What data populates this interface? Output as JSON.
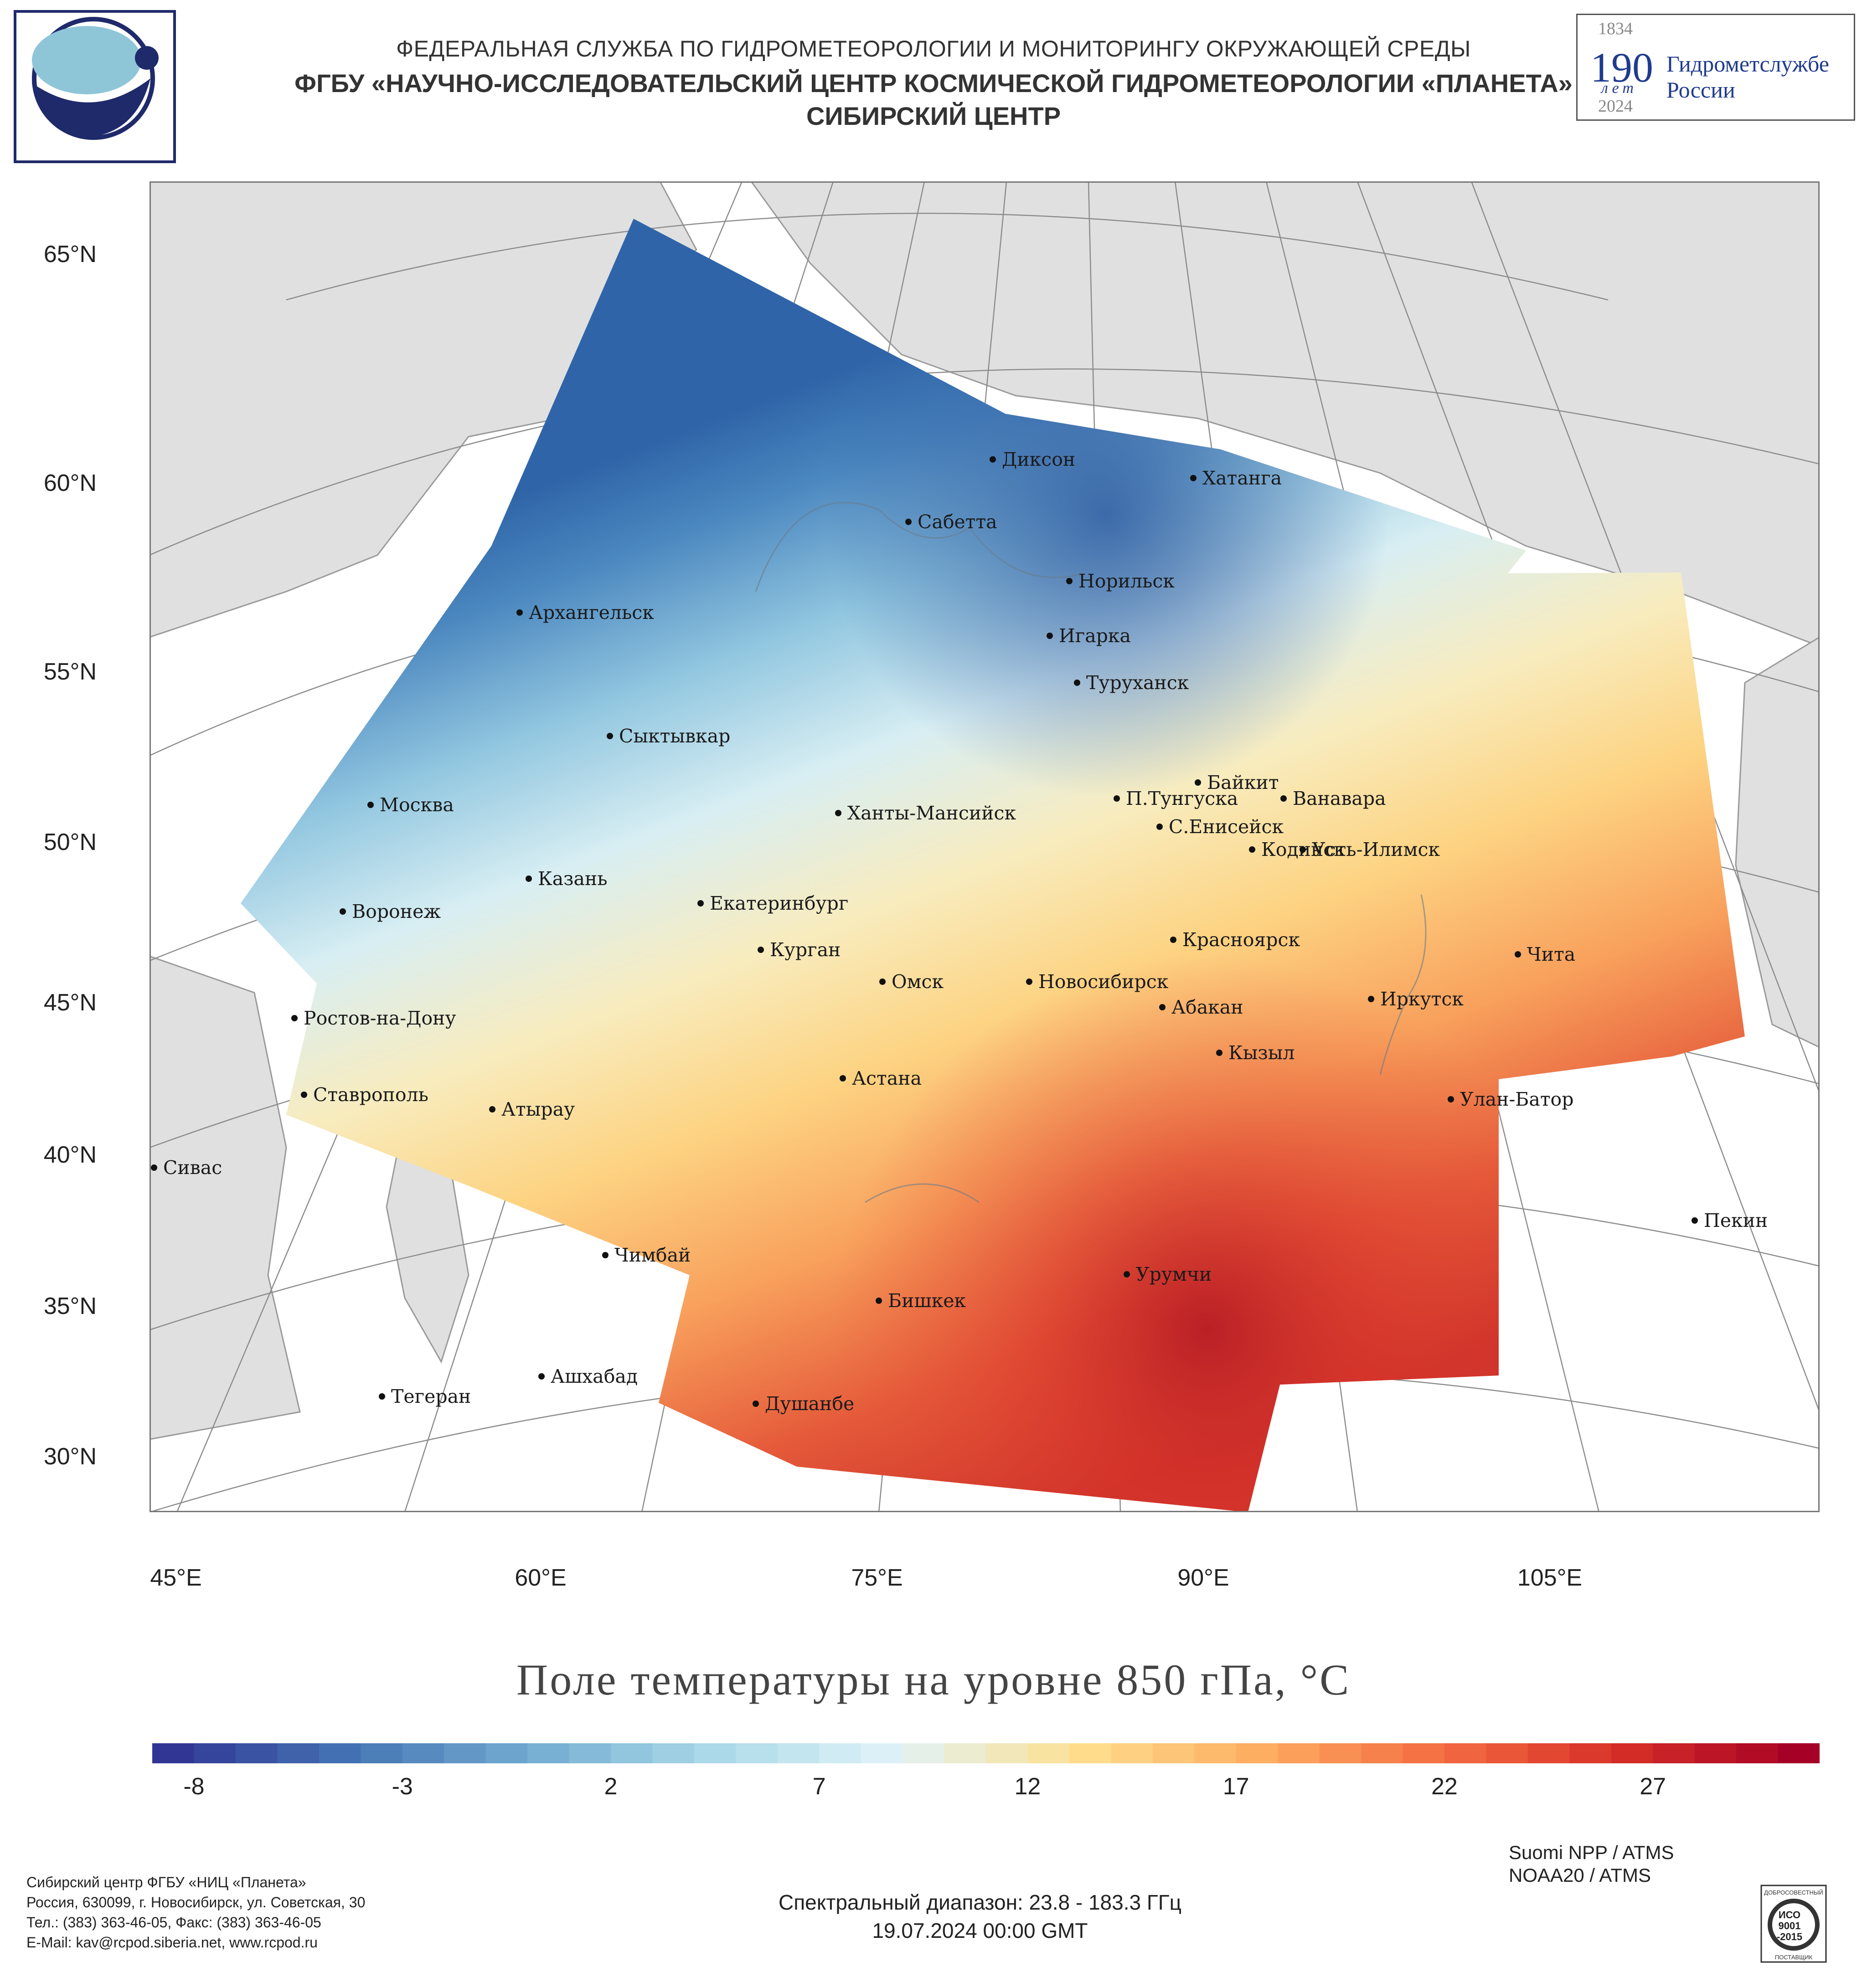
{
  "header": {
    "agency": "ФЕДЕРАЛЬНАЯ СЛУЖБА ПО ГИДРОМЕТЕОРОЛОГИИ И МОНИТОРИНГУ ОКРУЖАЮЩЕЙ СРЕДЫ",
    "institute": "ФГБУ «НАУЧНО-ИССЛЕДОВАТЕЛЬСКИЙ ЦЕНТР КОСМИЧЕСКОЙ ГИДРОМЕТЕОРОЛОГИИ «ПЛАНЕТА»",
    "center": "СИБИРСКИЙ ЦЕНТР"
  },
  "badge": {
    "year_start": "1834",
    "number": "190",
    "years_word": "лет",
    "year_end": "2024",
    "line1": "Гидрометслужбе",
    "line2": "России"
  },
  "map": {
    "lat_labels": [
      "65°N",
      "60°N",
      "55°N",
      "50°N",
      "45°N",
      "40°N",
      "35°N",
      "30°N"
    ],
    "lon_labels": [
      "45°E",
      "60°E",
      "75°E",
      "90°E",
      "105°E"
    ],
    "cities": [
      "Диксон",
      "Хатанга",
      "Сабетта",
      "Норильск",
      "Архангельск",
      "Игарка",
      "Туруханск",
      "Сыктывкар",
      "Байкит",
      "Москва",
      "П.Тунгуска",
      "Ванавара",
      "Ханты-Мансийск",
      "С.Енисейск",
      "Кодинск",
      "Усть-Илимск",
      "Казань",
      "Екатеринбург",
      "Воронеж",
      "Красноярск",
      "Курган",
      "Чита",
      "Омск",
      "Новосибирск",
      "Ростов-на-Дону",
      "Иркутск",
      "Абакан",
      "Кызыл",
      "Ставрополь",
      "Астана",
      "Улан-Батор",
      "Атырау",
      "Сивас",
      "Пекин",
      "Чимбай",
      "Урумчи",
      "Бишкек",
      "Ашхабад",
      "Тегеран",
      "Душанбе"
    ]
  },
  "legend": {
    "title": "Поле температуры на уровне 850 гПа, °C",
    "ticks": [
      "-8",
      "-3",
      "2",
      "7",
      "12",
      "17",
      "22",
      "27"
    ],
    "range_min": -9,
    "range_max": 31,
    "colors": [
      "#313695",
      "#4575b4",
      "#74add1",
      "#abd9e9",
      "#e0f3f8",
      "#fee090",
      "#fdae61",
      "#f46d43",
      "#d73027",
      "#a50026"
    ]
  },
  "footer": {
    "satellite1": "Suomi NPP / ATMS",
    "satellite2": "NOAA20 / ATMS",
    "spectral": "Спектральный диапазон: 23.8 - 183.3 ГГц",
    "datetime": "19.07.2024 00:00 GMT",
    "contact1": "Сибирский центр ФГБУ «НИЦ «Планета»",
    "contact2": "Россия, 630099, г. Новосибирск, ул. Советская, 30",
    "contact3": "Тел.: (383) 363-46-05, Факс: (383) 363-46-05",
    "contact4": "E-Mail: kav@rcpod.siberia.net, www.rcpod.ru",
    "iso_top": "ДОБРОСОВЕСТНЫЙ",
    "iso_l1": "ИСО",
    "iso_l2": "9001",
    "iso_l3": "-2015",
    "iso_bottom": "ПОСТАВЩИК"
  }
}
